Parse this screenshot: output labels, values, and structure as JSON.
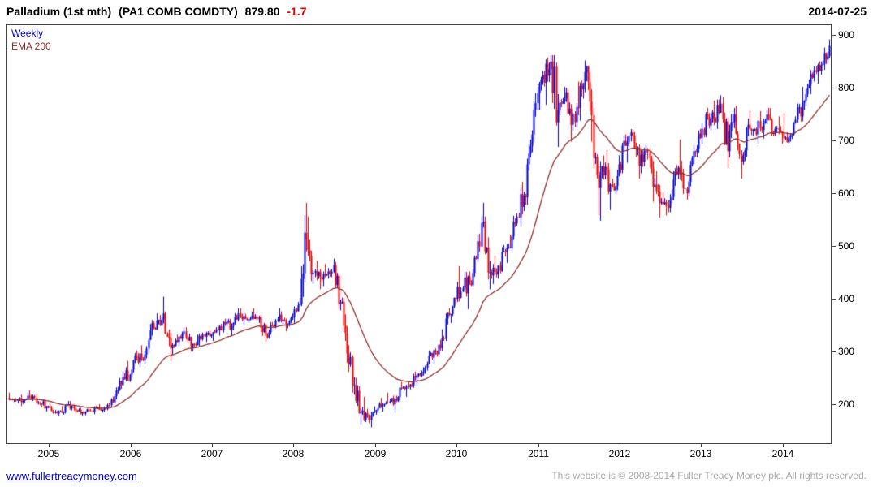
{
  "header": {
    "instrument": "Palladium (1st mth)",
    "code": "(PA1 COMB COMDTY)",
    "price": "879.80",
    "change": "-1.7",
    "date": "2014-07-25"
  },
  "legend": {
    "series": "Weekly",
    "overlay": "EMA 200"
  },
  "footer": {
    "link": "www.fullertreacymoney.com",
    "copyright": "This website is © 2008-2014 Fuller Treacy Money plc. All rights reserved."
  },
  "chart_data": {
    "type": "candlestick",
    "title": "Palladium (1st mth) (PA1 COMB COMDTY)",
    "timeframe": "Weekly",
    "overlay": "EMA 200",
    "last_price": 879.8,
    "change": -1.7,
    "grid": false,
    "legend_position": "top-left",
    "x_range": [
      2004.49,
      2014.59
    ],
    "y_range": [
      126,
      919
    ],
    "y_ticks": [
      200,
      300,
      400,
      500,
      600,
      700,
      800,
      900
    ],
    "x_ticks": [
      2005,
      2006,
      2007,
      2008,
      2009,
      2010,
      2011,
      2012,
      2013,
      2014
    ],
    "colors": {
      "up": "#0000cc",
      "down": "#e60000",
      "ema": "#8f2d2d",
      "axis": "#444444"
    },
    "ema": {
      "label": "EMA 200",
      "period_weeks": 40
    },
    "monthly": {
      "start": 2004.5,
      "step_years": 0.0833333,
      "columns": [
        "open",
        "high",
        "low",
        "close"
      ],
      "ohlc": [
        [
          212,
          222,
          204,
          210
        ],
        [
          210,
          218,
          196,
          204
        ],
        [
          204,
          222,
          200,
          216
        ],
        [
          216,
          226,
          206,
          212
        ],
        [
          212,
          218,
          194,
          200
        ],
        [
          200,
          210,
          186,
          196
        ],
        [
          196,
          202,
          182,
          186
        ],
        [
          186,
          196,
          178,
          184
        ],
        [
          184,
          206,
          180,
          200
        ],
        [
          200,
          206,
          182,
          187
        ],
        [
          187,
          193,
          178,
          185
        ],
        [
          185,
          192,
          179,
          188
        ],
        [
          188,
          197,
          181,
          192
        ],
        [
          192,
          200,
          184,
          189
        ],
        [
          189,
          203,
          185,
          198
        ],
        [
          198,
          232,
          194,
          226
        ],
        [
          226,
          262,
          220,
          252
        ],
        [
          252,
          282,
          242,
          256
        ],
        [
          256,
          302,
          250,
          290
        ],
        [
          290,
          312,
          270,
          283
        ],
        [
          283,
          352,
          276,
          340
        ],
        [
          340,
          372,
          330,
          358
        ],
        [
          358,
          404,
          348,
          372
        ],
        [
          372,
          376,
          282,
          306
        ],
        [
          306,
          332,
          294,
          318
        ],
        [
          318,
          346,
          310,
          338
        ],
        [
          338,
          346,
          300,
          310
        ],
        [
          310,
          332,
          300,
          322
        ],
        [
          322,
          336,
          310,
          328
        ],
        [
          328,
          342,
          318,
          332
        ],
        [
          332,
          346,
          320,
          340
        ],
        [
          340,
          362,
          330,
          352
        ],
        [
          352,
          362,
          330,
          348
        ],
        [
          348,
          382,
          340,
          372
        ],
        [
          372,
          382,
          350,
          362
        ],
        [
          362,
          376,
          354,
          368
        ],
        [
          368,
          382,
          354,
          365
        ],
        [
          365,
          370,
          318,
          330
        ],
        [
          330,
          356,
          324,
          350
        ],
        [
          350,
          382,
          344,
          370
        ],
        [
          370,
          376,
          338,
          350
        ],
        [
          350,
          372,
          344,
          365
        ],
        [
          365,
          402,
          354,
          390
        ],
        [
          390,
          582,
          386,
          512
        ],
        [
          512,
          556,
          428,
          450
        ],
        [
          450,
          472,
          418,
          440
        ],
        [
          440,
          466,
          424,
          446
        ],
        [
          446,
          476,
          438,
          464
        ],
        [
          464,
          470,
          378,
          392
        ],
        [
          392,
          402,
          278,
          296
        ],
        [
          296,
          312,
          218,
          236
        ],
        [
          236,
          250,
          162,
          184
        ],
        [
          184,
          214,
          166,
          178
        ],
        [
          178,
          196,
          156,
          186
        ],
        [
          186,
          212,
          180,
          196
        ],
        [
          196,
          222,
          186,
          202
        ],
        [
          202,
          216,
          184,
          210
        ],
        [
          210,
          242,
          204,
          230
        ],
        [
          230,
          242,
          214,
          233
        ],
        [
          233,
          262,
          228,
          250
        ],
        [
          250,
          264,
          234,
          258
        ],
        [
          258,
          302,
          254,
          292
        ],
        [
          292,
          306,
          278,
          298
        ],
        [
          298,
          342,
          290,
          326
        ],
        [
          326,
          382,
          320,
          370
        ],
        [
          370,
          402,
          354,
          400
        ],
        [
          400,
          462,
          394,
          420
        ],
        [
          420,
          452,
          380,
          430
        ],
        [
          430,
          482,
          424,
          476
        ],
        [
          476,
          582,
          470,
          546
        ],
        [
          546,
          556,
          418,
          450
        ],
        [
          450,
          482,
          428,
          446
        ],
        [
          446,
          502,
          438,
          490
        ],
        [
          490,
          522,
          468,
          496
        ],
        [
          496,
          562,
          490,
          556
        ],
        [
          556,
          622,
          538,
          596
        ],
        [
          596,
          702,
          578,
          690
        ],
        [
          690,
          802,
          678,
          790
        ],
        [
          790,
          832,
          758,
          810
        ],
        [
          810,
          862,
          768,
          850
        ],
        [
          850,
          862,
          688,
          758
        ],
        [
          758,
          802,
          748,
          780
        ],
        [
          780,
          800,
          698,
          730
        ],
        [
          730,
          812,
          718,
          762
        ],
        [
          762,
          852,
          738,
          830
        ],
        [
          830,
          842,
          698,
          748
        ],
        [
          748,
          762,
          558,
          610
        ],
        [
          610,
          672,
          548,
          650
        ],
        [
          650,
          682,
          568,
          612
        ],
        [
          612,
          672,
          598,
          655
        ],
        [
          655,
          712,
          638,
          690
        ],
        [
          690,
          722,
          658,
          710
        ],
        [
          710,
          716,
          628,
          652
        ],
        [
          652,
          692,
          638,
          680
        ],
        [
          680,
          686,
          584,
          612
        ],
        [
          612,
          642,
          554,
          582
        ],
        [
          582,
          602,
          558,
          576
        ],
        [
          576,
          642,
          564,
          626
        ],
        [
          626,
          702,
          614,
          640
        ],
        [
          640,
          662,
          588,
          600
        ],
        [
          600,
          692,
          594,
          680
        ],
        [
          680,
          722,
          668,
          705
        ],
        [
          705,
          762,
          694,
          745
        ],
        [
          745,
          776,
          718,
          736
        ],
        [
          736,
          786,
          722,
          770
        ],
        [
          770,
          782,
          648,
          680
        ],
        [
          680,
          762,
          668,
          750
        ],
        [
          750,
          766,
          628,
          660
        ],
        [
          660,
          742,
          654,
          730
        ],
        [
          730,
          756,
          708,
          722
        ],
        [
          722,
          756,
          694,
          720
        ],
        [
          720,
          762,
          704,
          740
        ],
        [
          740,
          762,
          708,
          722
        ],
        [
          722,
          746,
          694,
          712
        ],
        [
          712,
          752,
          694,
          706
        ],
        [
          706,
          746,
          698,
          740
        ],
        [
          740,
          802,
          734,
          772
        ],
        [
          772,
          816,
          758,
          806
        ],
        [
          806,
          842,
          788,
          830
        ],
        [
          830,
          852,
          808,
          846
        ],
        [
          846,
          892,
          834,
          879.8
        ]
      ]
    }
  }
}
